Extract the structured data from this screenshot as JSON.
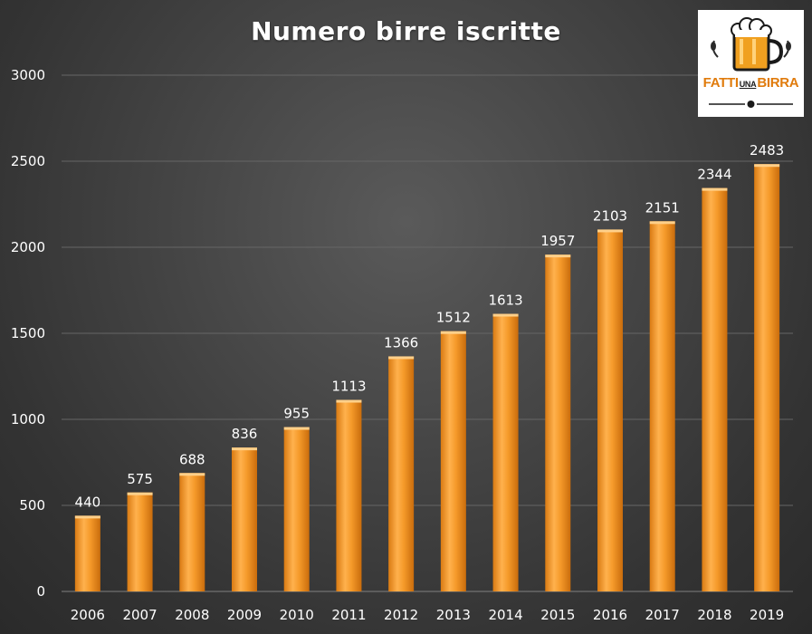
{
  "title": "Numero birre iscritte",
  "logo": {
    "text_left": "FATTI",
    "text_mid": "UNA",
    "text_right": "BIRRA",
    "accent": "#e07b0c"
  },
  "colors": {
    "bar": "#f59a2a",
    "bar_dark": "#d97a12",
    "bar_light": "#ffbf6a",
    "grid": "#6a6a6a",
    "text": "#ffffff"
  },
  "chart_data": {
    "type": "bar",
    "title": "Numero birre iscritte",
    "categories": [
      "2006",
      "2007",
      "2008",
      "2009",
      "2010",
      "2011",
      "2012",
      "2013",
      "2014",
      "2015",
      "2016",
      "2017",
      "2018",
      "2019"
    ],
    "values": [
      440,
      575,
      688,
      836,
      955,
      1113,
      1366,
      1512,
      1613,
      1957,
      2103,
      2151,
      2344,
      2483
    ],
    "ylim": [
      0,
      3000
    ],
    "yticks": [
      0,
      500,
      1000,
      1500,
      2000,
      2500,
      3000
    ],
    "grid": true,
    "legend": "none"
  }
}
